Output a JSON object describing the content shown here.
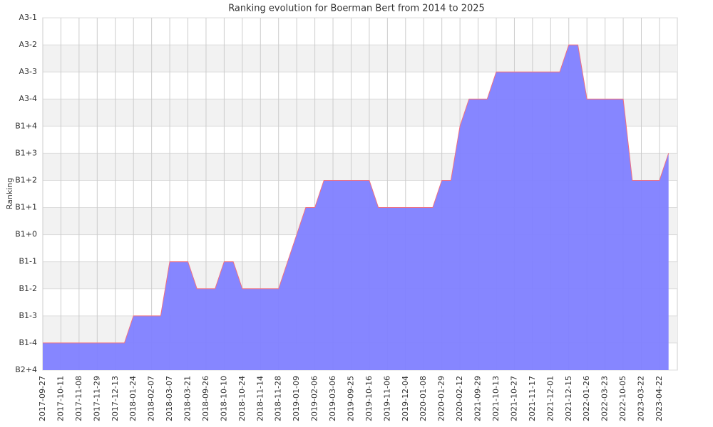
{
  "chart_data": {
    "type": "area",
    "title": "Ranking evolution for Boerman Bert from 2014 to 2025",
    "y_label": "Ranking",
    "categories": [
      "2017-09-27",
      null,
      "2017-10-11",
      null,
      "2017-11-08",
      null,
      "2017-11-29",
      null,
      "2017-12-13",
      null,
      "2018-01-24",
      null,
      "2018-02-07",
      null,
      "2018-03-07",
      null,
      "2018-03-21",
      null,
      "2018-09-26",
      null,
      "2018-10-10",
      null,
      "2018-10-24",
      null,
      "2018-11-14",
      null,
      "2018-11-28",
      null,
      "2019-01-09",
      null,
      "2019-02-06",
      null,
      "2019-03-06",
      null,
      "2019-09-25",
      null,
      "2019-10-16",
      null,
      "2019-11-06",
      null,
      "2019-12-04",
      null,
      "2020-01-08",
      null,
      "2020-01-29",
      null,
      "2020-02-12",
      null,
      "2021-09-29",
      null,
      "2021-10-13",
      null,
      "2021-10-27",
      null,
      "2021-11-17",
      null,
      "2021-12-01",
      null,
      "2021-12-15",
      null,
      "2022-01-26",
      null,
      "2022-03-23",
      null,
      "2022-10-05",
      null,
      "2023-03-22",
      null,
      "2023-04-22",
      null
    ],
    "values": [
      1,
      1,
      1,
      1,
      1,
      1,
      1,
      1,
      1,
      1,
      2,
      2,
      2,
      2,
      4,
      4,
      4,
      3,
      3,
      3,
      4,
      4,
      3,
      3,
      3,
      3,
      3,
      4,
      5,
      6,
      6,
      7,
      7,
      7,
      7,
      7,
      7,
      6,
      6,
      6,
      6,
      6,
      6,
      6,
      7,
      7,
      9,
      10,
      10,
      10,
      11,
      11,
      11,
      11,
      11,
      11,
      11,
      11,
      12,
      12,
      10,
      10,
      10,
      10,
      10,
      7,
      7,
      7,
      7,
      8
    ],
    "color": "#8080ff",
    "line_color": "#f07080",
    "ylim": [
      0,
      13
    ],
    "yticks": [
      {
        "value": 0,
        "label": "B2+4"
      },
      {
        "value": 1,
        "label": "B1-4"
      },
      {
        "value": 2,
        "label": "B1-3"
      },
      {
        "value": 3,
        "label": "B1-2"
      },
      {
        "value": 4,
        "label": "B1-1"
      },
      {
        "value": 5,
        "label": "B1+0"
      },
      {
        "value": 6,
        "label": "B1+1"
      },
      {
        "value": 7,
        "label": "B1+2"
      },
      {
        "value": 8,
        "label": "B1+3"
      },
      {
        "value": 9,
        "label": "B1+4"
      },
      {
        "value": 10,
        "label": "A3-4"
      },
      {
        "value": 11,
        "label": "A3-3"
      },
      {
        "value": 12,
        "label": "A3-2"
      },
      {
        "value": 13,
        "label": "A3-1"
      }
    ],
    "grid": true
  }
}
